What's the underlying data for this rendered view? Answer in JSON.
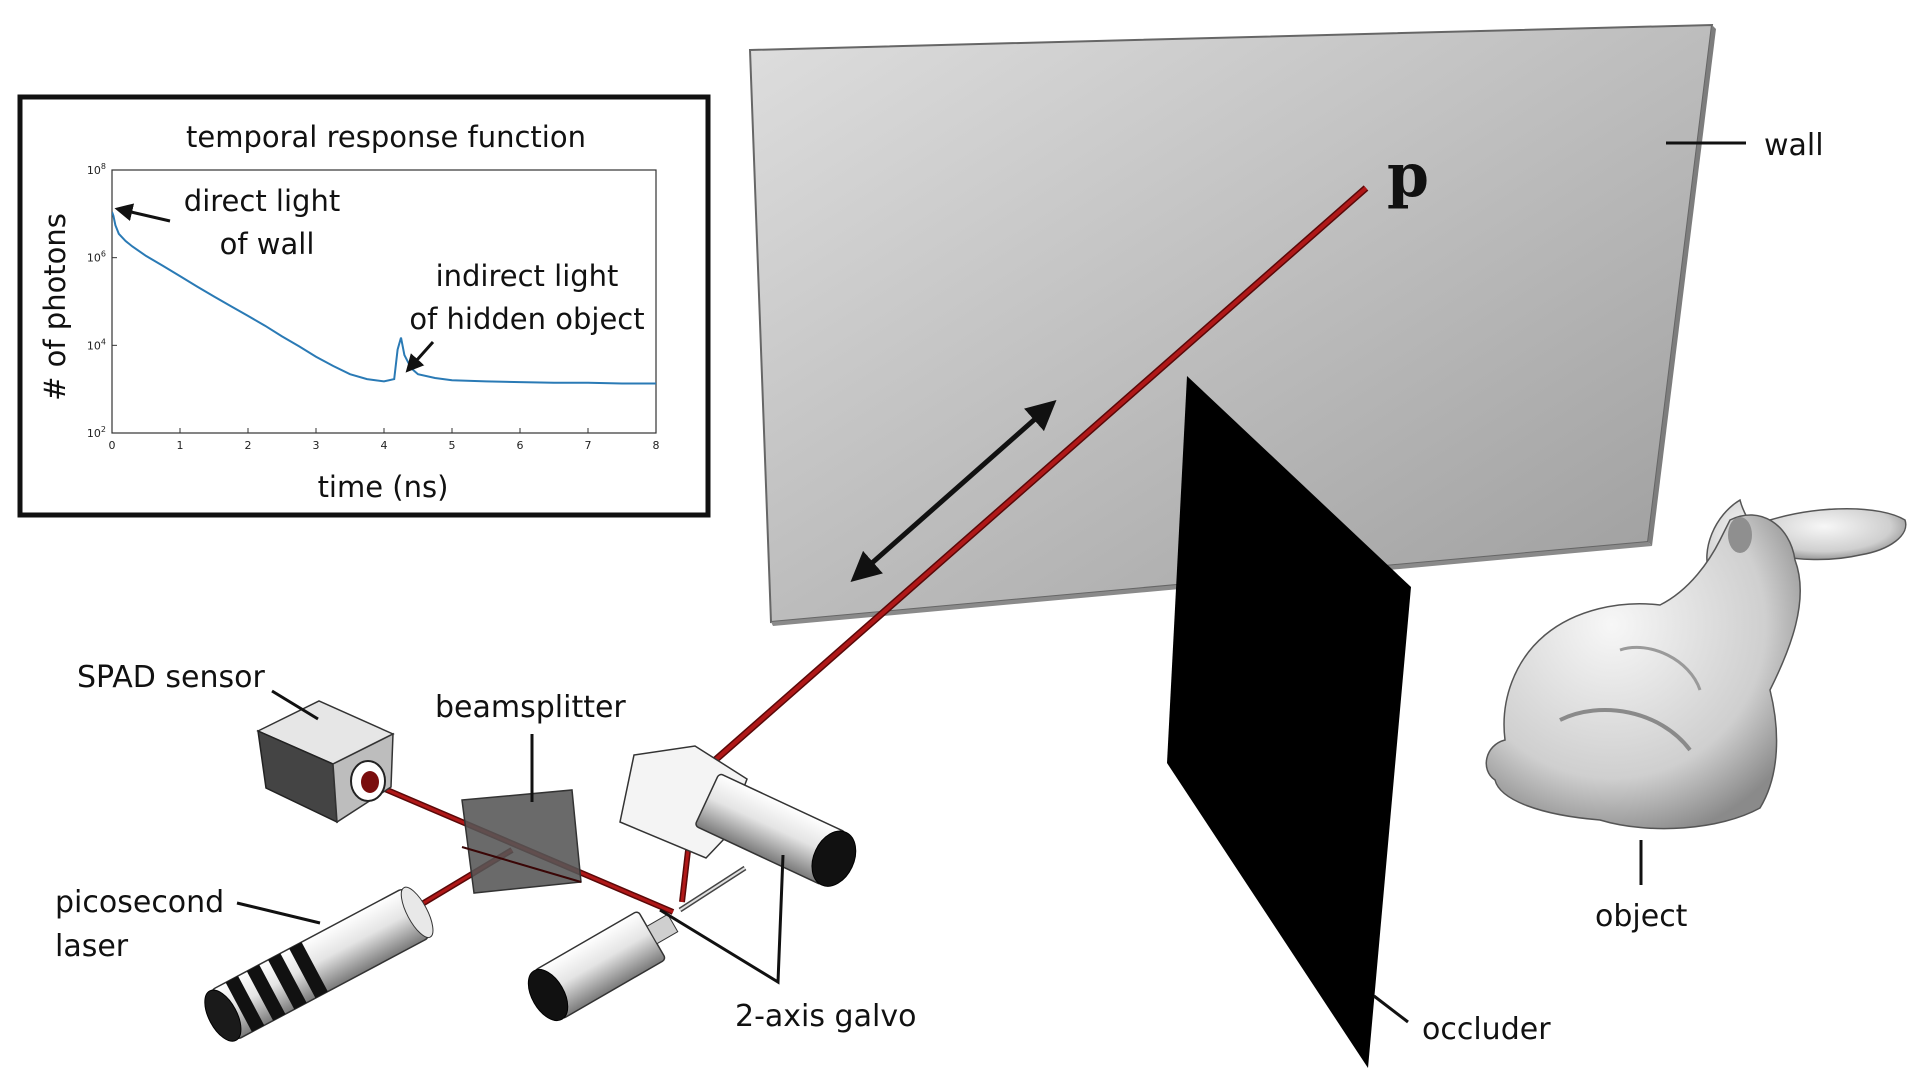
{
  "labels": {
    "wall": "wall",
    "point": "p",
    "occluder": "occluder",
    "object": "object",
    "spad": "SPAD sensor",
    "beamsplitter": "beamsplitter",
    "laser_line1": "picosecond",
    "laser_line2": "laser",
    "galvo": "2-axis galvo"
  },
  "inset": {
    "title": "temporal response function",
    "annotation_direct_line1": "direct light",
    "annotation_direct_line2": "of wall",
    "annotation_indirect_line1": "indirect light",
    "annotation_indirect_line2": "of hidden object"
  },
  "colors": {
    "beam": "#8f1212",
    "curve": "#2a7ab5",
    "wall_light": "#dcdcdc",
    "wall_dark": "#9a9a9a",
    "occluder": "#000000"
  },
  "chart_data": {
    "type": "line",
    "title": "temporal response function",
    "xlabel": "time (ns)",
    "ylabel": "# of photons",
    "xlim": [
      0,
      8
    ],
    "ylim": [
      100,
      100000000
    ],
    "yscale": "log",
    "xticks": [
      "0",
      "1",
      "2",
      "3",
      "4",
      "5",
      "6",
      "7",
      "8"
    ],
    "yticks": [
      "10^2",
      "10^4",
      "10^6",
      "10^8"
    ],
    "series": [
      {
        "x": [
          0.0,
          0.02,
          0.05,
          0.1,
          0.2,
          0.3,
          0.5,
          0.75,
          1.0,
          1.25,
          1.5,
          1.75,
          2.0,
          2.25,
          2.5,
          2.75,
          3.0,
          3.25,
          3.5,
          3.75,
          4.0,
          4.15,
          4.2,
          4.25,
          4.3,
          4.4,
          4.5,
          4.75,
          5.0,
          5.5,
          6.0,
          6.5,
          7.0,
          7.5,
          8.0
        ],
        "y": [
          11000000,
          9000000,
          5500000,
          3500000,
          2400000,
          1800000,
          1100000,
          650000,
          380000,
          220000,
          130000,
          78000,
          47000,
          28000,
          16000,
          9500,
          5500,
          3400,
          2200,
          1700,
          1500,
          1700,
          8000,
          15000,
          6000,
          3000,
          2200,
          1800,
          1600,
          1500,
          1450,
          1400,
          1400,
          1350,
          1350
        ]
      }
    ]
  }
}
